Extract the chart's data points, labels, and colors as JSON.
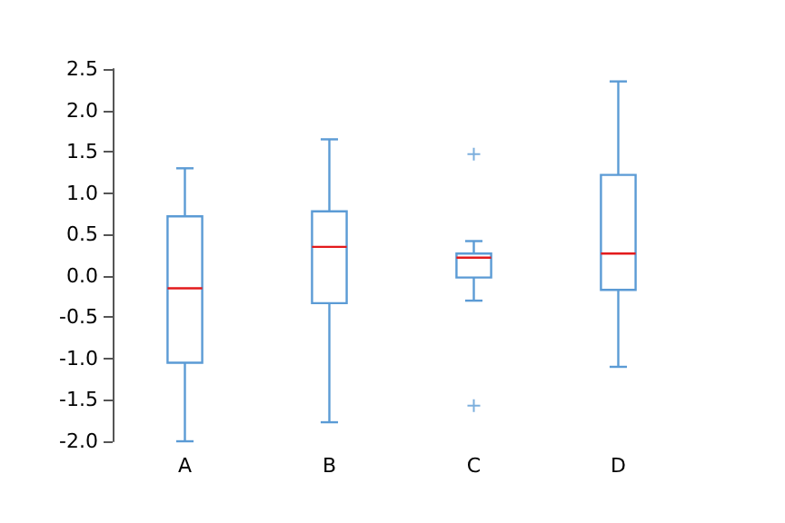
{
  "chart_data": {
    "type": "box",
    "categories": [
      "A",
      "B",
      "C",
      "D"
    ],
    "series": [
      {
        "color": "#5b9bd5",
        "boxes": [
          {
            "low": -2.0,
            "q1": -1.05,
            "median": -0.15,
            "q3": 0.72,
            "high": 1.3
          },
          {
            "low": -1.77,
            "q1": -0.33,
            "median": 0.35,
            "q3": 0.78,
            "high": 1.65
          },
          {
            "low": -0.3,
            "q1": -0.02,
            "median": 0.22,
            "q3": 0.27,
            "high": 0.42,
            "outliers": [
              1.47,
              -1.57
            ]
          },
          {
            "low": -1.1,
            "q1": -0.17,
            "median": 0.27,
            "q3": 1.22,
            "high": 2.35
          }
        ]
      }
    ],
    "ylim": [
      -2.0,
      2.5
    ],
    "yticks": [
      {
        "value": -2,
        "label": "-2.0"
      },
      {
        "value": -1.5,
        "label": "-1.5"
      },
      {
        "value": -1,
        "label": "-1.0"
      },
      {
        "value": -0.5,
        "label": "-0.5"
      },
      {
        "value": 0,
        "label": "0.0"
      },
      {
        "value": 0.5,
        "label": "0.5"
      },
      {
        "value": 1,
        "label": "1.0"
      },
      {
        "value": 1.5,
        "label": "1.5"
      },
      {
        "value": 2,
        "label": "2.0"
      },
      {
        "value": 2.5,
        "label": "2.5"
      }
    ],
    "grid": false,
    "marker": "cross"
  }
}
